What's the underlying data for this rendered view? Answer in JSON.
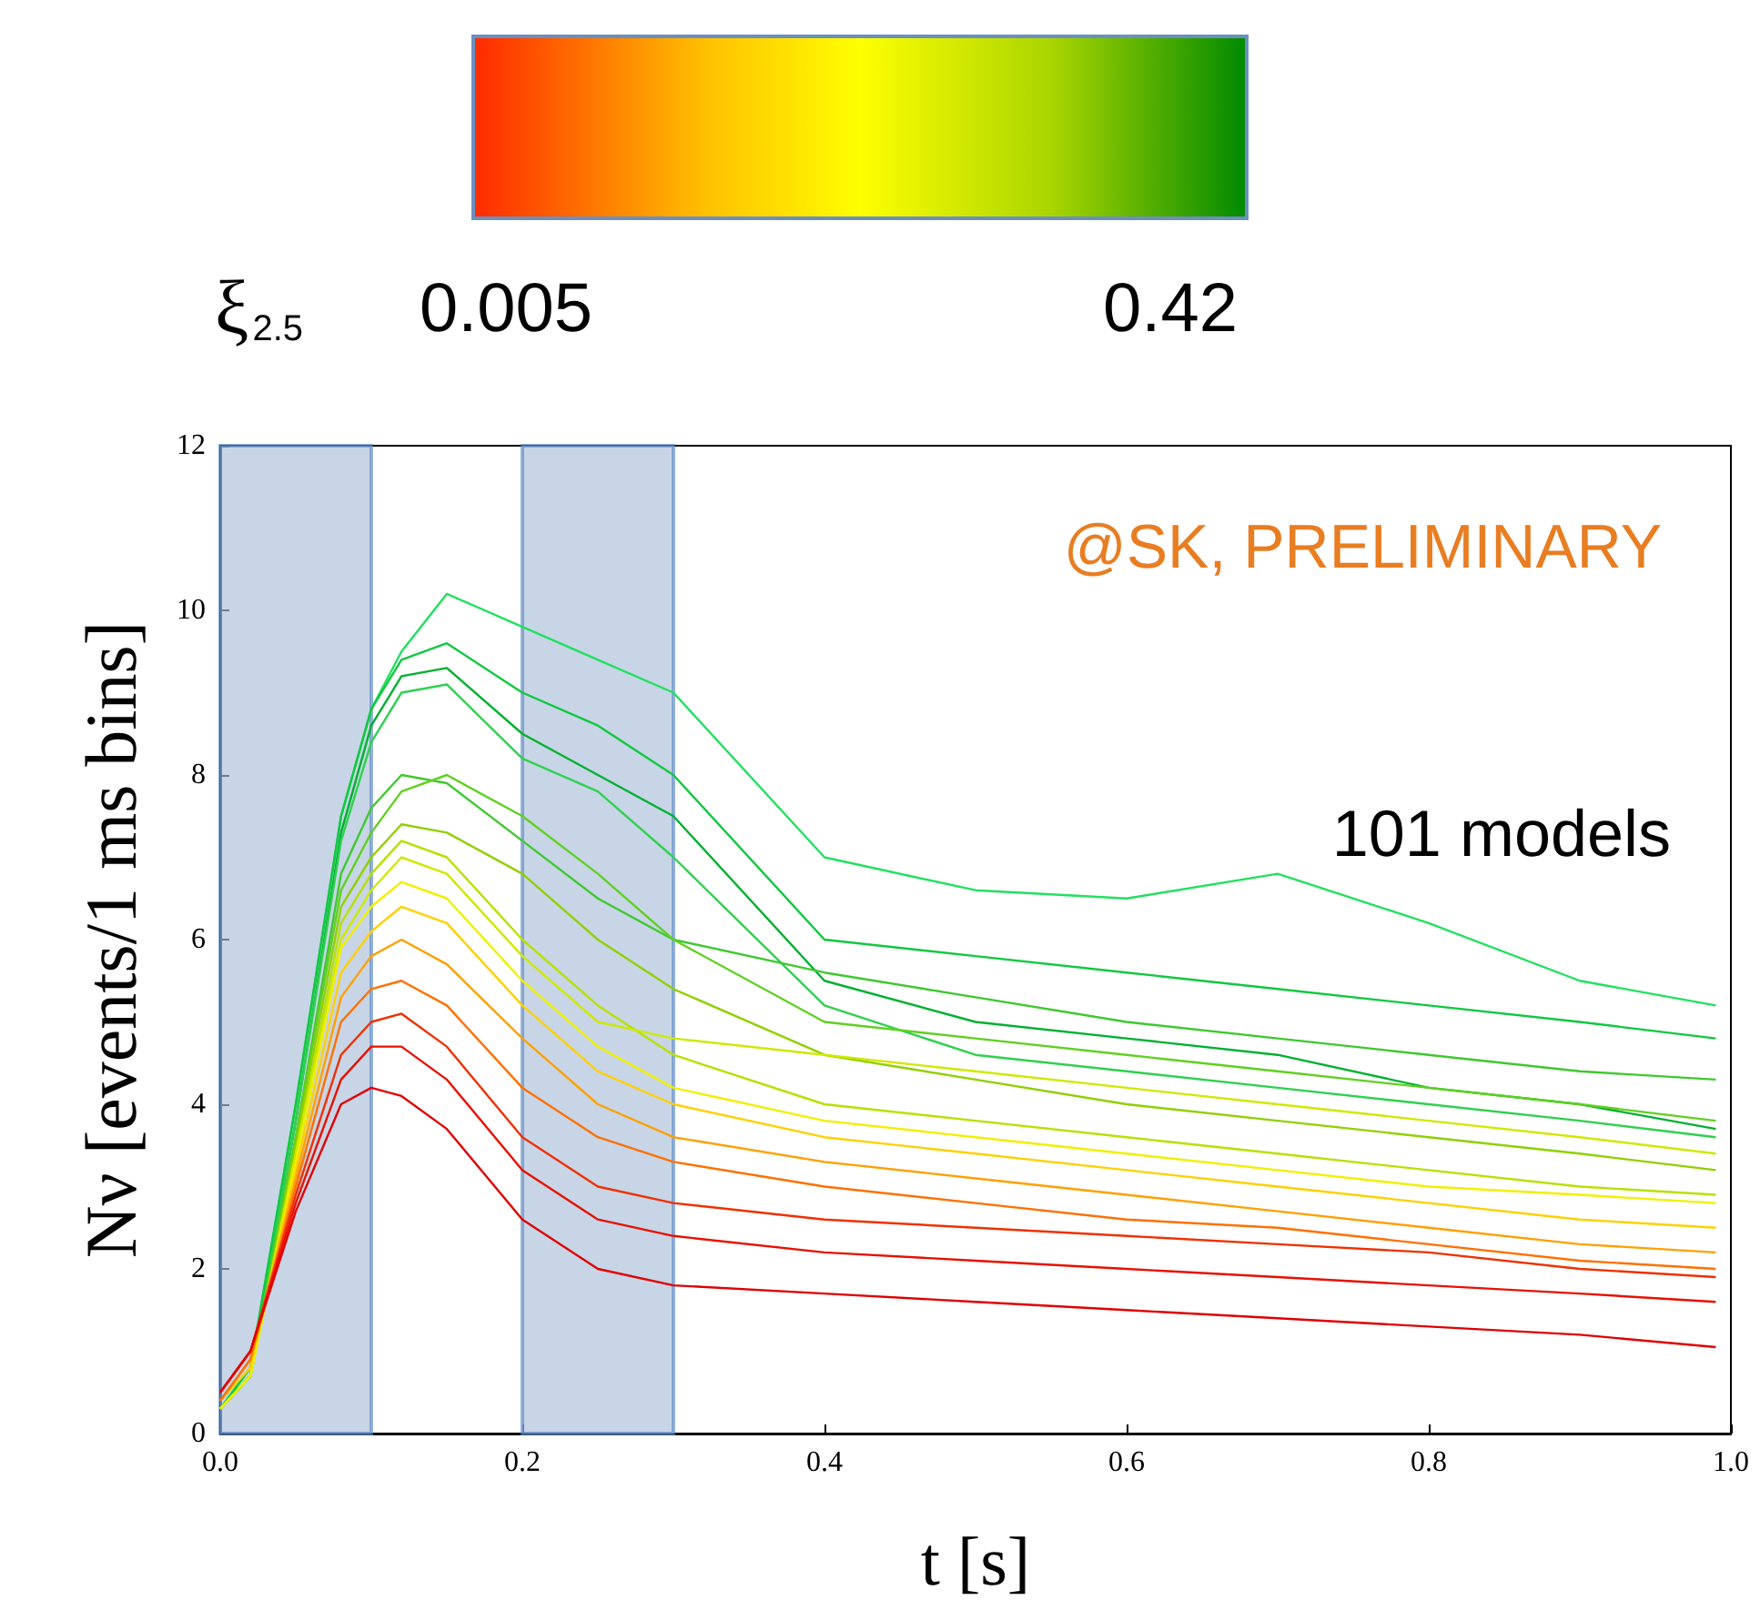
{
  "chart_data": {
    "type": "line",
    "xlabel": "t [s]",
    "ylabel": "Nν [events/1 ms bins]",
    "clabel": "ξ$_{2.5}$",
    "clim": [
      0.005,
      0.42
    ],
    "cticks": [
      0.005,
      0.42
    ],
    "xlim": [
      0,
      1
    ],
    "ylim": [
      0,
      12
    ],
    "xticks": [
      {
        "value": 0,
        "label": "0.0"
      },
      {
        "value": 0.2,
        "label": "0.2"
      },
      {
        "value": 0.4,
        "label": "0.4"
      },
      {
        "value": 0.6,
        "label": "0.6"
      },
      {
        "value": 0.8,
        "label": "0.8"
      },
      {
        "value": 1,
        "label": "1.0"
      }
    ],
    "yticks": [
      0,
      2,
      4,
      6,
      8,
      10,
      12
    ],
    "grid": false,
    "marker": "none",
    "line_style": "solid",
    "x": [
      0,
      0.02,
      0.05,
      0.08,
      0.1,
      0.12,
      0.15,
      0.2,
      0.25,
      0.3,
      0.4,
      0.5,
      0.6,
      0.7,
      0.8,
      0.9,
      0.99
    ],
    "bands": [
      {
        "axis": "x",
        "from": 0,
        "to": 0.1,
        "color": "#a9bfd9"
      },
      {
        "axis": "x",
        "from": 0.2,
        "to": 0.3,
        "color": "#a9bfd9"
      }
    ],
    "annotations": [
      "@SK, PRELIMINARY",
      "101 models"
    ],
    "series": [
      {
        "color": "#22e060",
        "values": [
          0.3,
          0.8,
          4,
          7.5,
          8.8,
          9.5,
          10.2,
          9.8,
          9.4,
          9.0,
          7.0,
          6.6,
          6.5,
          6.8,
          6.2,
          5.5,
          5.2
        ]
      },
      {
        "color": "#10c840",
        "values": [
          0.3,
          0.8,
          4,
          7.5,
          8.8,
          9.4,
          9.6,
          9.0,
          8.6,
          8.0,
          6.0,
          5.8,
          5.6,
          5.4,
          5.2,
          5.0,
          4.8
        ]
      },
      {
        "color": "#00b030",
        "values": [
          0.3,
          0.7,
          3.8,
          7.3,
          8.6,
          9.2,
          9.3,
          8.5,
          8.0,
          7.5,
          5.5,
          5.0,
          4.8,
          4.6,
          4.2,
          4.0,
          3.7
        ]
      },
      {
        "color": "#30d050",
        "values": [
          0.3,
          0.7,
          3.8,
          7.2,
          8.4,
          9.0,
          9.1,
          8.2,
          7.8,
          7.0,
          5.2,
          4.6,
          4.4,
          4.2,
          4.0,
          3.8,
          3.6
        ]
      },
      {
        "color": "#40c830",
        "values": [
          0.3,
          0.7,
          3.6,
          6.8,
          7.6,
          8.0,
          7.9,
          7.2,
          6.5,
          6.0,
          5.6,
          5.3,
          5.0,
          4.8,
          4.6,
          4.4,
          4.3
        ]
      },
      {
        "color": "#60d020",
        "values": [
          0.3,
          0.7,
          3.6,
          6.6,
          7.3,
          7.8,
          8.0,
          7.5,
          6.8,
          6.0,
          5.0,
          4.8,
          4.6,
          4.4,
          4.2,
          4.0,
          3.8
        ]
      },
      {
        "color": "#90d000",
        "values": [
          0.3,
          0.7,
          3.5,
          6.4,
          7.0,
          7.4,
          7.3,
          6.8,
          6.0,
          5.4,
          4.6,
          4.3,
          4.0,
          3.8,
          3.6,
          3.4,
          3.2
        ]
      },
      {
        "color": "#b8e000",
        "values": [
          0.3,
          0.7,
          3.4,
          6.2,
          6.8,
          7.2,
          7.0,
          6.0,
          5.2,
          4.6,
          4.0,
          3.8,
          3.6,
          3.4,
          3.2,
          3.0,
          2.9
        ]
      },
      {
        "color": "#d0e800",
        "values": [
          0.3,
          0.7,
          3.4,
          6.0,
          6.6,
          7.0,
          6.8,
          5.8,
          5.0,
          4.8,
          4.6,
          4.4,
          4.2,
          4.0,
          3.8,
          3.6,
          3.4
        ]
      },
      {
        "color": "#f0f000",
        "values": [
          0.3,
          0.7,
          3.3,
          5.9,
          6.4,
          6.7,
          6.5,
          5.5,
          4.7,
          4.2,
          3.8,
          3.6,
          3.4,
          3.2,
          3.0,
          2.9,
          2.8
        ]
      },
      {
        "color": "#ffd000",
        "values": [
          0.4,
          0.8,
          3.2,
          5.6,
          6.1,
          6.4,
          6.2,
          5.2,
          4.4,
          4.0,
          3.6,
          3.4,
          3.2,
          3.0,
          2.8,
          2.6,
          2.5
        ]
      },
      {
        "color": "#ffa000",
        "values": [
          0.4,
          0.9,
          3.1,
          5.3,
          5.8,
          6.0,
          5.7,
          4.8,
          4.0,
          3.6,
          3.3,
          3.1,
          2.9,
          2.7,
          2.5,
          2.3,
          2.2
        ]
      },
      {
        "color": "#ff7000",
        "values": [
          0.4,
          0.9,
          3.0,
          5.0,
          5.4,
          5.5,
          5.2,
          4.2,
          3.6,
          3.3,
          3.0,
          2.8,
          2.6,
          2.5,
          2.3,
          2.1,
          2.0
        ]
      },
      {
        "color": "#f03000",
        "values": [
          0.5,
          1.0,
          2.9,
          4.6,
          5.0,
          5.1,
          4.7,
          3.6,
          3.0,
          2.8,
          2.6,
          2.5,
          2.4,
          2.3,
          2.2,
          2.0,
          1.9
        ]
      },
      {
        "color": "#e81000",
        "values": [
          0.5,
          1.0,
          2.8,
          4.3,
          4.7,
          4.7,
          4.3,
          3.2,
          2.6,
          2.4,
          2.2,
          2.1,
          2.0,
          1.9,
          1.8,
          1.7,
          1.6
        ]
      },
      {
        "color": "#e00000",
        "values": [
          0.5,
          1.0,
          2.7,
          4.0,
          4.2,
          4.1,
          3.7,
          2.6,
          2.0,
          1.8,
          1.7,
          1.6,
          1.5,
          1.4,
          1.3,
          1.2,
          1.05
        ]
      }
    ]
  }
}
